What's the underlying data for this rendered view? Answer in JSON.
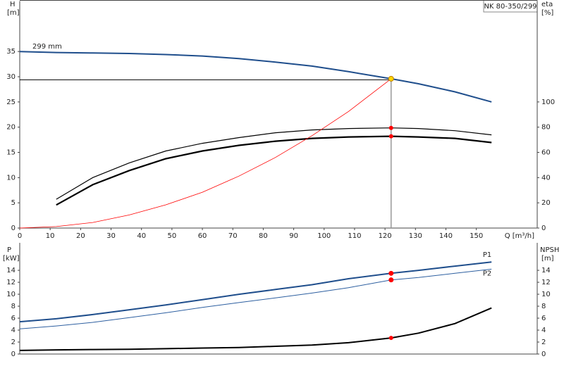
{
  "chart_data": [
    {
      "type": "line",
      "title": "NK 80-350/299",
      "annotation": "299 mm",
      "y_label": "H",
      "y_unit": "[m]",
      "y2_label": "eta",
      "y2_unit": "[%]",
      "x_label": "Q [m³/h]",
      "xlim": [
        0,
        170
      ],
      "xticks": [
        0,
        10,
        20,
        30,
        40,
        50,
        60,
        70,
        80,
        90,
        100,
        110,
        120,
        130,
        140,
        150
      ],
      "ylim": [
        0,
        45
      ],
      "yticks": [
        0,
        5,
        10,
        15,
        20,
        25,
        30,
        35
      ],
      "y2lim": [
        0,
        180
      ],
      "y2ticks": [
        0,
        20,
        40,
        60,
        80,
        100
      ],
      "series": [
        {
          "color": "#1f4e8c",
          "line_width": 2,
          "x": [
            0,
            12,
            24,
            36,
            48,
            60,
            72,
            84,
            96,
            108,
            122,
            131,
            143,
            155
          ],
          "values": [
            35,
            34.8,
            34.7,
            34.6,
            34.4,
            34.1,
            33.6,
            32.9,
            32.1,
            31.0,
            29.6,
            28.6,
            27.0,
            25.0
          ]
        },
        {
          "color": "#000000",
          "line_width": 1.2,
          "axis": "y2",
          "x": [
            12,
            24,
            36,
            48,
            60,
            72,
            84,
            96,
            108,
            122,
            131,
            143,
            155
          ],
          "values": [
            22.8,
            40,
            51.7,
            61.1,
            67.2,
            71.7,
            75.6,
            77.8,
            78.9,
            79.4,
            78.9,
            77.2,
            73.9
          ]
        },
        {
          "color": "#000000",
          "line_width": 2.2,
          "axis": "y2",
          "x": [
            12,
            24,
            36,
            48,
            60,
            72,
            84,
            96,
            108,
            122,
            131,
            143,
            155
          ],
          "values": [
            18.3,
            34.4,
            45.6,
            55,
            61.1,
            65.6,
            68.9,
            71.1,
            72.2,
            72.8,
            72.2,
            71.1,
            67.8
          ]
        },
        {
          "color": "#ff0000",
          "line_width": 0.8,
          "x": [
            0,
            12,
            24,
            36,
            48,
            60,
            72,
            84,
            96,
            108,
            122
          ],
          "values": [
            0,
            0.3,
            1.1,
            2.6,
            4.6,
            7.1,
            10.3,
            14.0,
            18.3,
            23.1,
            29.6
          ]
        }
      ],
      "duty_point": {
        "x": 122,
        "y": [
          29.6
        ],
        "y2": [
          79.4,
          72.8
        ],
        "lines": true,
        "y_color": "#ffd700",
        "y2_color": "#ff0000"
      }
    },
    {
      "type": "line",
      "y_label": "P",
      "y_unit": "[kW]",
      "y2_label": "NPSH",
      "y2_unit": "[m]",
      "xlim": [
        0,
        170
      ],
      "ylim": [
        0,
        18.6
      ],
      "yticks": [
        0,
        2,
        4,
        6,
        8,
        10,
        12,
        14
      ],
      "y2lim": [
        0,
        18.6
      ],
      "y2ticks": [
        0,
        2,
        4,
        6,
        8,
        10,
        12,
        14
      ],
      "series": [
        {
          "name": "P1",
          "color": "#1f4e8c",
          "line_width": 2,
          "x": [
            0,
            12,
            24,
            36,
            48,
            60,
            72,
            84,
            96,
            108,
            122,
            131,
            143,
            155
          ],
          "values": [
            5.4,
            5.9,
            6.6,
            7.4,
            8.2,
            9.1,
            10.0,
            10.8,
            11.6,
            12.6,
            13.5,
            14.0,
            14.7,
            15.4
          ]
        },
        {
          "name": "P2",
          "color": "#2d5fa0",
          "line_width": 1,
          "x": [
            0,
            12,
            24,
            36,
            48,
            60,
            72,
            84,
            96,
            108,
            122,
            131,
            143,
            155
          ],
          "values": [
            4.2,
            4.7,
            5.3,
            6.1,
            6.9,
            7.8,
            8.6,
            9.4,
            10.2,
            11.1,
            12.4,
            12.8,
            13.5,
            14.2
          ]
        },
        {
          "color": "#000000",
          "line_width": 2,
          "axis": "y2",
          "x": [
            0,
            12,
            24,
            36,
            48,
            60,
            72,
            84,
            96,
            108,
            122,
            131,
            143,
            155
          ],
          "values": [
            0.6,
            0.7,
            0.75,
            0.8,
            0.9,
            1.0,
            1.1,
            1.3,
            1.5,
            1.9,
            2.7,
            3.5,
            5.1,
            7.7
          ]
        }
      ],
      "duty_point": {
        "x": 122,
        "y": [
          13.5,
          12.4
        ],
        "y2": [
          2.7
        ],
        "lines": false,
        "y_color": "#ff0000",
        "y2_color": "#ff0000"
      }
    }
  ]
}
